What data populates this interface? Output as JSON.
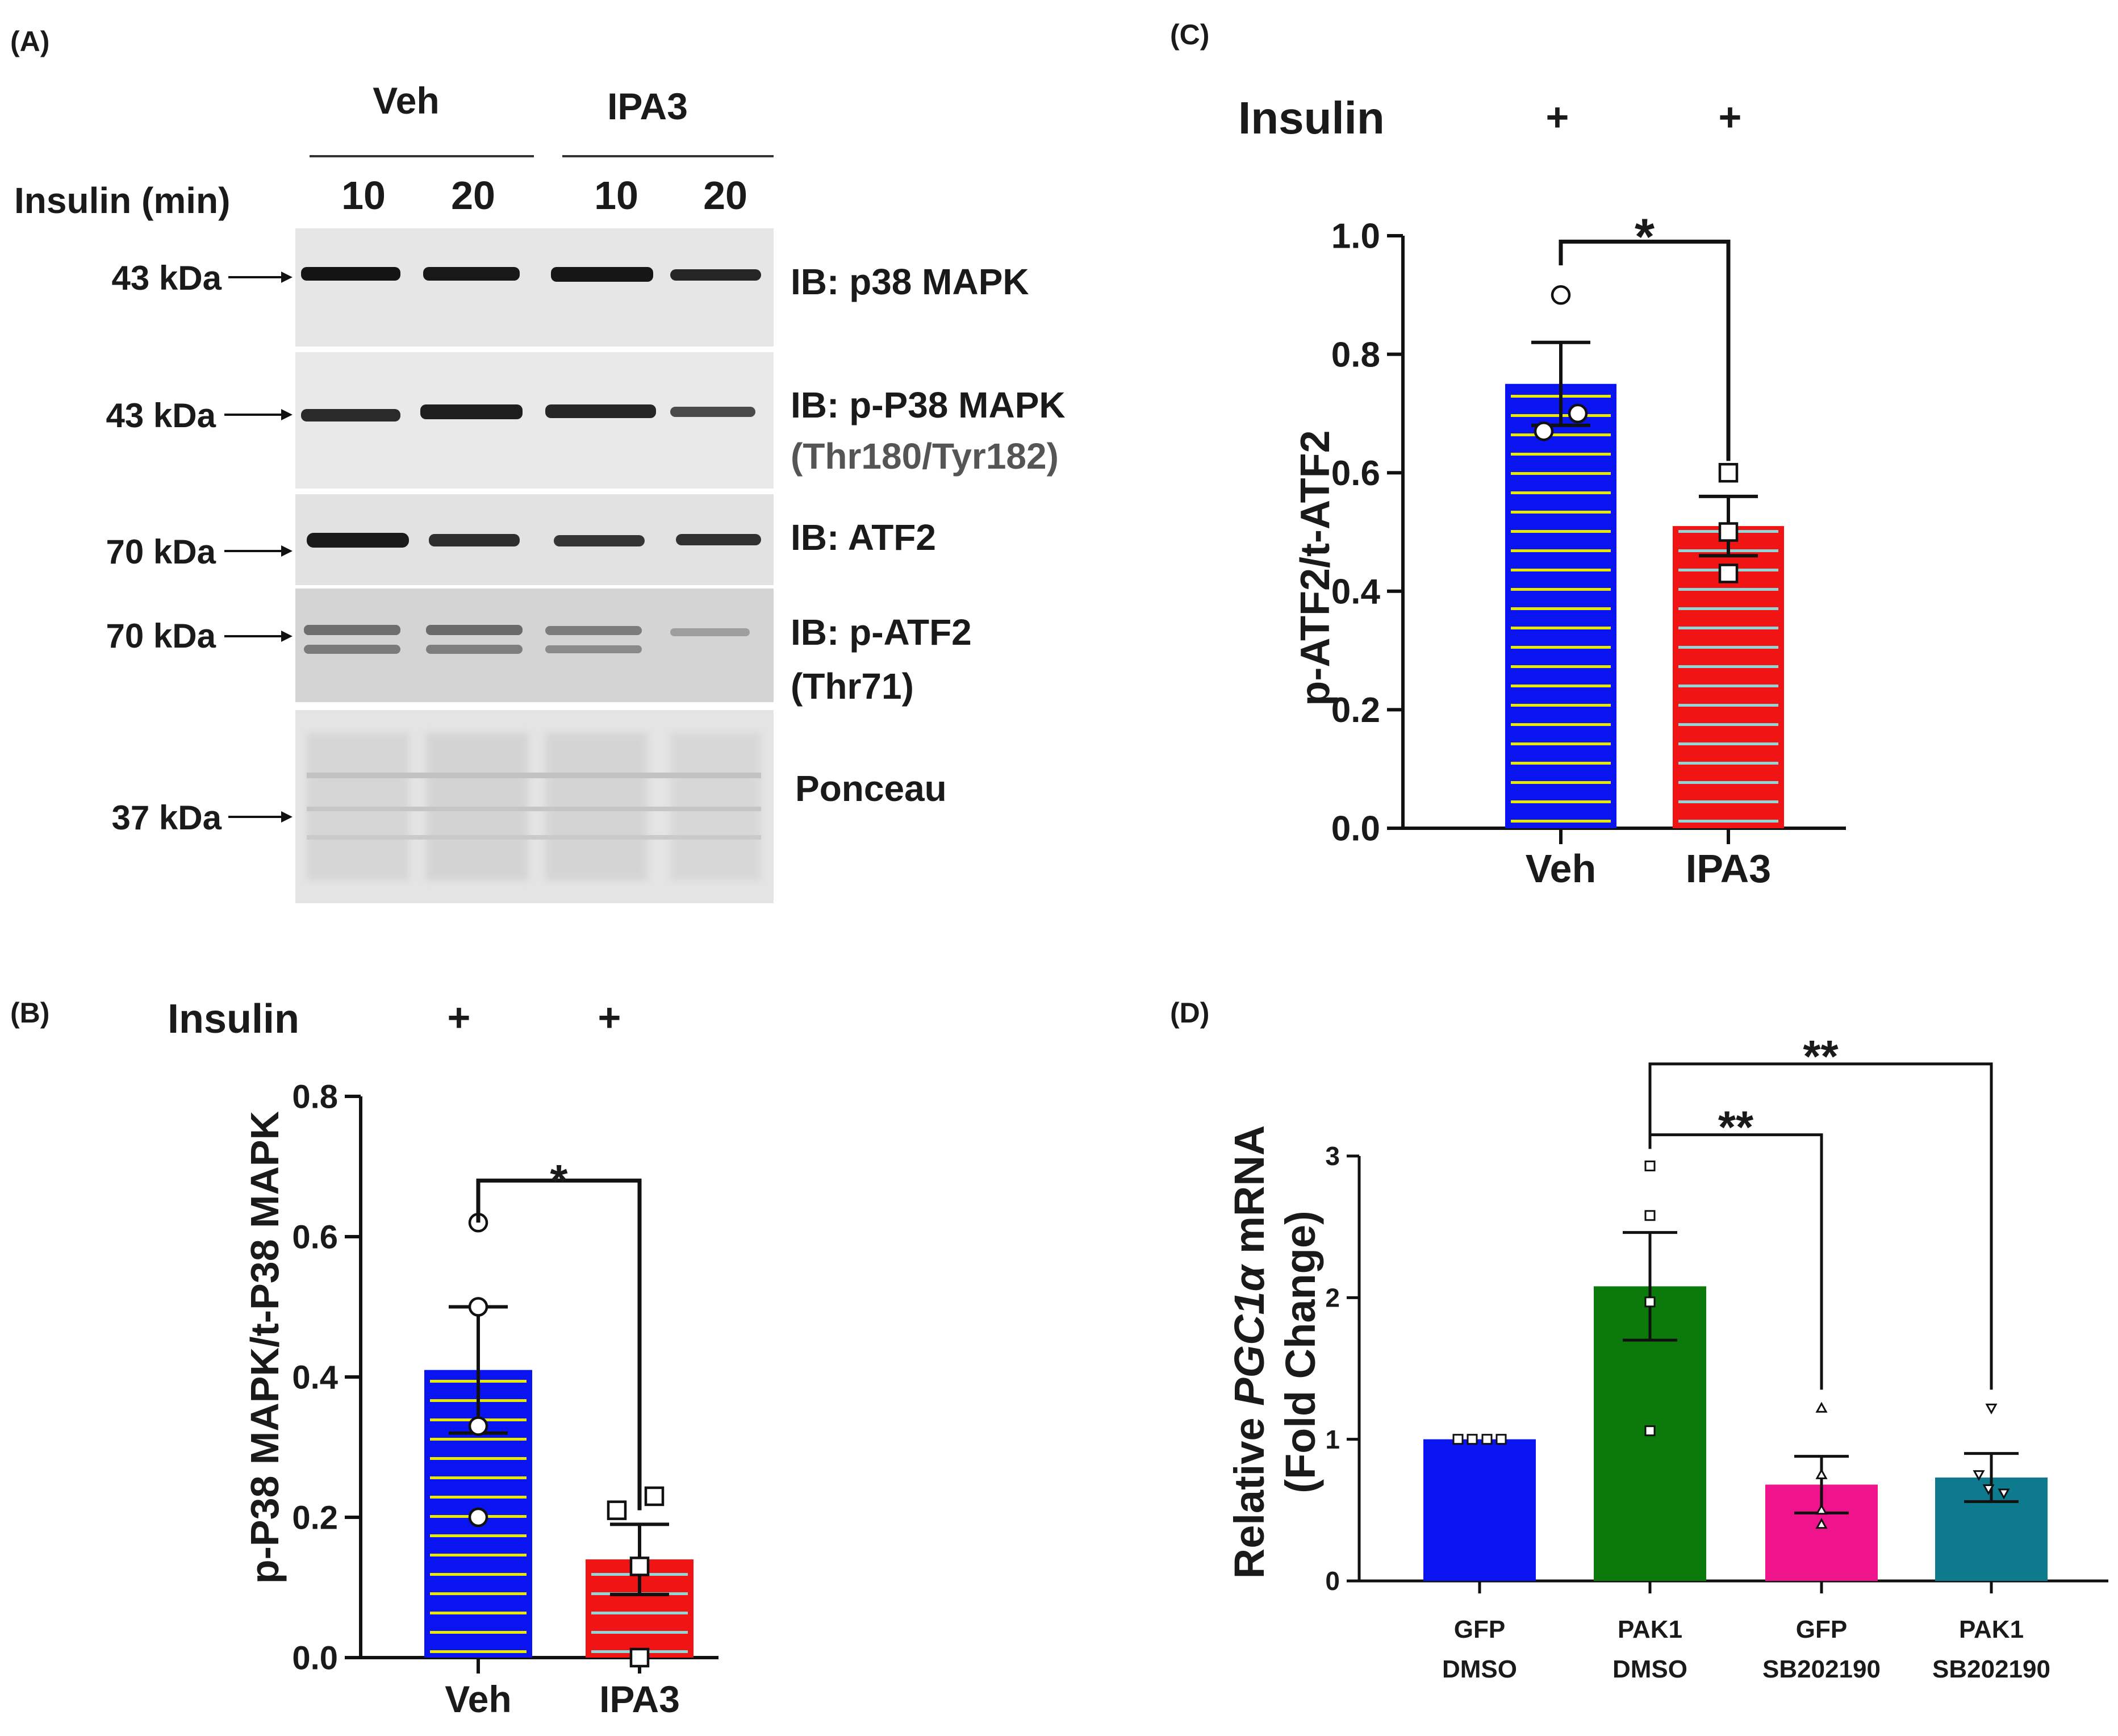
{
  "panels": {
    "a": "(A)",
    "b": "(B)",
    "c": "(C)",
    "d": "(D)"
  },
  "blot": {
    "groups": [
      "Veh",
      "IPA3"
    ],
    "insulin_label": "Insulin (min)",
    "timepoints": [
      "10",
      "20",
      "10",
      "20"
    ],
    "rows": [
      {
        "marker": "43 kDa",
        "label1": "IB: p38 MAPK",
        "label2": ""
      },
      {
        "marker": "43 kDa",
        "label1": "IB: p-P38 MAPK",
        "label2": "(Thr180/Tyr182)"
      },
      {
        "marker": "70 kDa",
        "label1": "IB: ATF2",
        "label2": ""
      },
      {
        "marker": "70 kDa",
        "label1": "IB: p-ATF2",
        "label2": "(Thr71)"
      },
      {
        "marker": "37 kDa",
        "label1": "Ponceau",
        "label2": ""
      }
    ]
  },
  "colors": {
    "blue": "#0a14f0",
    "red": "#f01414",
    "green": "#0b7a0b",
    "pink": "#f0148c",
    "teal": "#0e7a8e",
    "yellow_stripe": "#e8e800",
    "cyan_stripe": "#8fd6d6"
  },
  "chart_data": [
    {
      "panel": "B",
      "type": "bar",
      "header_label": "Insulin",
      "header_marks": [
        "+",
        "+"
      ],
      "categories": [
        "Veh",
        "IPA3"
      ],
      "values": [
        0.41,
        0.14
      ],
      "errors": [
        0.09,
        0.05
      ],
      "points": [
        [
          0.62,
          0.5,
          0.33,
          0.2
        ],
        [
          0.21,
          0.23,
          0.13,
          0.0
        ]
      ],
      "ylabel": "p-P38 MAPK/t-P38 MAPK",
      "ylim": [
        0,
        0.8
      ],
      "yticks": [
        "0.0",
        "0.2",
        "0.4",
        "0.6",
        "0.8"
      ],
      "significance": [
        "*"
      ]
    },
    {
      "panel": "C",
      "type": "bar",
      "header_label": "Insulin",
      "header_marks": [
        "+",
        "+"
      ],
      "categories": [
        "Veh",
        "IPA3"
      ],
      "values": [
        0.75,
        0.51
      ],
      "errors": [
        0.07,
        0.05
      ],
      "points": [
        [
          0.9,
          0.67,
          0.7
        ],
        [
          0.6,
          0.5,
          0.43
        ]
      ],
      "ylabel": "p-ATF2/t-ATF2",
      "ylim": [
        0,
        1.0
      ],
      "yticks": [
        "0.0",
        "0.2",
        "0.4",
        "0.6",
        "0.8",
        "1.0"
      ],
      "significance": [
        "*"
      ]
    },
    {
      "panel": "D",
      "type": "bar",
      "categories": [
        [
          "GFP",
          "DMSO"
        ],
        [
          "PAK1",
          "DMSO"
        ],
        [
          "GFP",
          "SB202190"
        ],
        [
          "PAK1",
          "SB202190"
        ]
      ],
      "values": [
        1.0,
        2.08,
        0.68,
        0.73
      ],
      "errors": [
        0.0,
        0.38,
        0.2,
        0.17
      ],
      "points": [
        [
          1.0,
          1.0,
          1.0,
          1.0
        ],
        [
          2.93,
          2.58,
          1.97,
          1.06
        ],
        [
          1.22,
          0.75,
          0.5,
          0.4
        ],
        [
          1.22,
          0.75,
          0.65,
          0.62
        ]
      ],
      "ylabel_prefix": "Relative ",
      "ylabel_gene": "PGC1",
      "ylabel_greek": "α",
      "ylabel_suffix": " mRNA",
      "ylabel_line2": "(Fold Change)",
      "ylim": [
        0,
        3
      ],
      "yticks": [
        "0",
        "1",
        "2",
        "3"
      ],
      "significance": [
        "**",
        "**"
      ]
    }
  ]
}
